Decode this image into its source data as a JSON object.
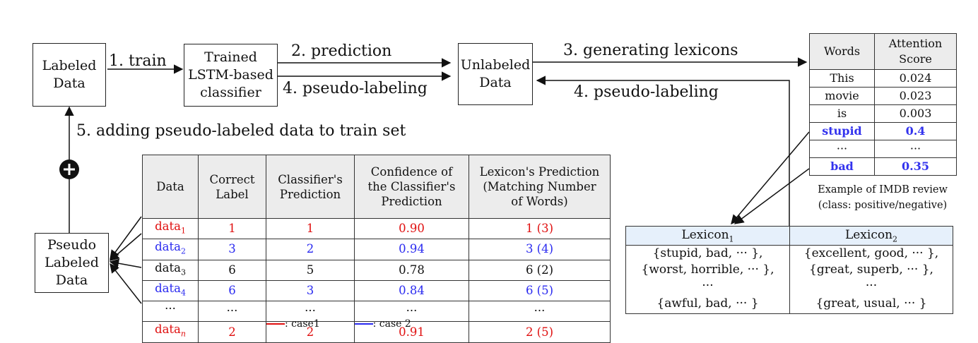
{
  "nodes": {
    "labeled": "Labeled\nData",
    "trained": "Trained\nLSTM-based\nclassifier",
    "unlabeled": "Unlabeled\nData",
    "pseudo": "Pseudo\nLabeled\nData"
  },
  "edges": {
    "train": "1.  train",
    "prediction": "2.  prediction",
    "pseudo_labeling_a": "4.  pseudo-labeling",
    "generating": "3.  generating lexicons",
    "pseudo_labeling_b": "4.  pseudo-labeling",
    "adding": "5.  adding pseudo-labeled data to train set"
  },
  "plus_symbol": "+",
  "data_table": {
    "headers": [
      "Data",
      "Correct\nLabel",
      "Classifier's\nPrediction",
      "Confidence of\nthe Classifier's\nPrediction",
      "Lexicon's Prediction\n(Matching Number\nof Words)"
    ],
    "rows": [
      {
        "name": "data",
        "sub": "1",
        "cells": [
          "1",
          "1",
          "0.90",
          "1 (3)"
        ],
        "color": "#e01010"
      },
      {
        "name": "data",
        "sub": "2",
        "cells": [
          "3",
          "2",
          "0.94",
          "3 (4)"
        ],
        "color": "#2a2af0"
      },
      {
        "name": "data",
        "sub": "3",
        "cells": [
          "6",
          "5",
          "0.78",
          "6 (2)"
        ],
        "color": "#111111"
      },
      {
        "name": "data",
        "sub": "4",
        "cells": [
          "6",
          "3",
          "0.84",
          "6 (5)"
        ],
        "color": "#2a2af0"
      },
      {
        "name": "···",
        "sub": "",
        "cells": [
          "···",
          "···",
          "···",
          "···"
        ],
        "color": "#111111"
      },
      {
        "name": "data",
        "sub": "n",
        "cells": [
          "2",
          "2",
          "0.91",
          "2 (5)"
        ],
        "color": "#e01010"
      }
    ]
  },
  "legend": {
    "case1": ": case1",
    "case2": ": case 2",
    "case1_color": "#e01010",
    "case2_color": "#2a2af0"
  },
  "attention_table": {
    "headers": [
      "Words",
      "Attention\nScore"
    ],
    "rows": [
      {
        "word": "This",
        "score": "0.024",
        "highlight": false
      },
      {
        "word": "movie",
        "score": "0.023",
        "highlight": false
      },
      {
        "word": "is",
        "score": "0.003",
        "highlight": false
      },
      {
        "word": "stupid",
        "score": "0.4",
        "highlight": true
      },
      {
        "word": "···",
        "score": "···",
        "highlight": false
      },
      {
        "word": "bad",
        "score": "0.35",
        "highlight": true
      }
    ],
    "caption": "Example of IMDB review\n(class: positive/negative)"
  },
  "lexicon_table": {
    "headers": [
      {
        "name": "Lexicon",
        "sub": "1"
      },
      {
        "name": "Lexicon",
        "sub": "2"
      }
    ],
    "rows": [
      [
        "{stupid, bad, ··· },",
        "{excellent, good, ··· },"
      ],
      [
        "{worst, horrible, ··· },",
        "{great, superb, ··· },"
      ],
      [
        "···",
        "···"
      ],
      [
        "{awful, bad, ··· }",
        "{great, usual, ··· }"
      ]
    ]
  }
}
